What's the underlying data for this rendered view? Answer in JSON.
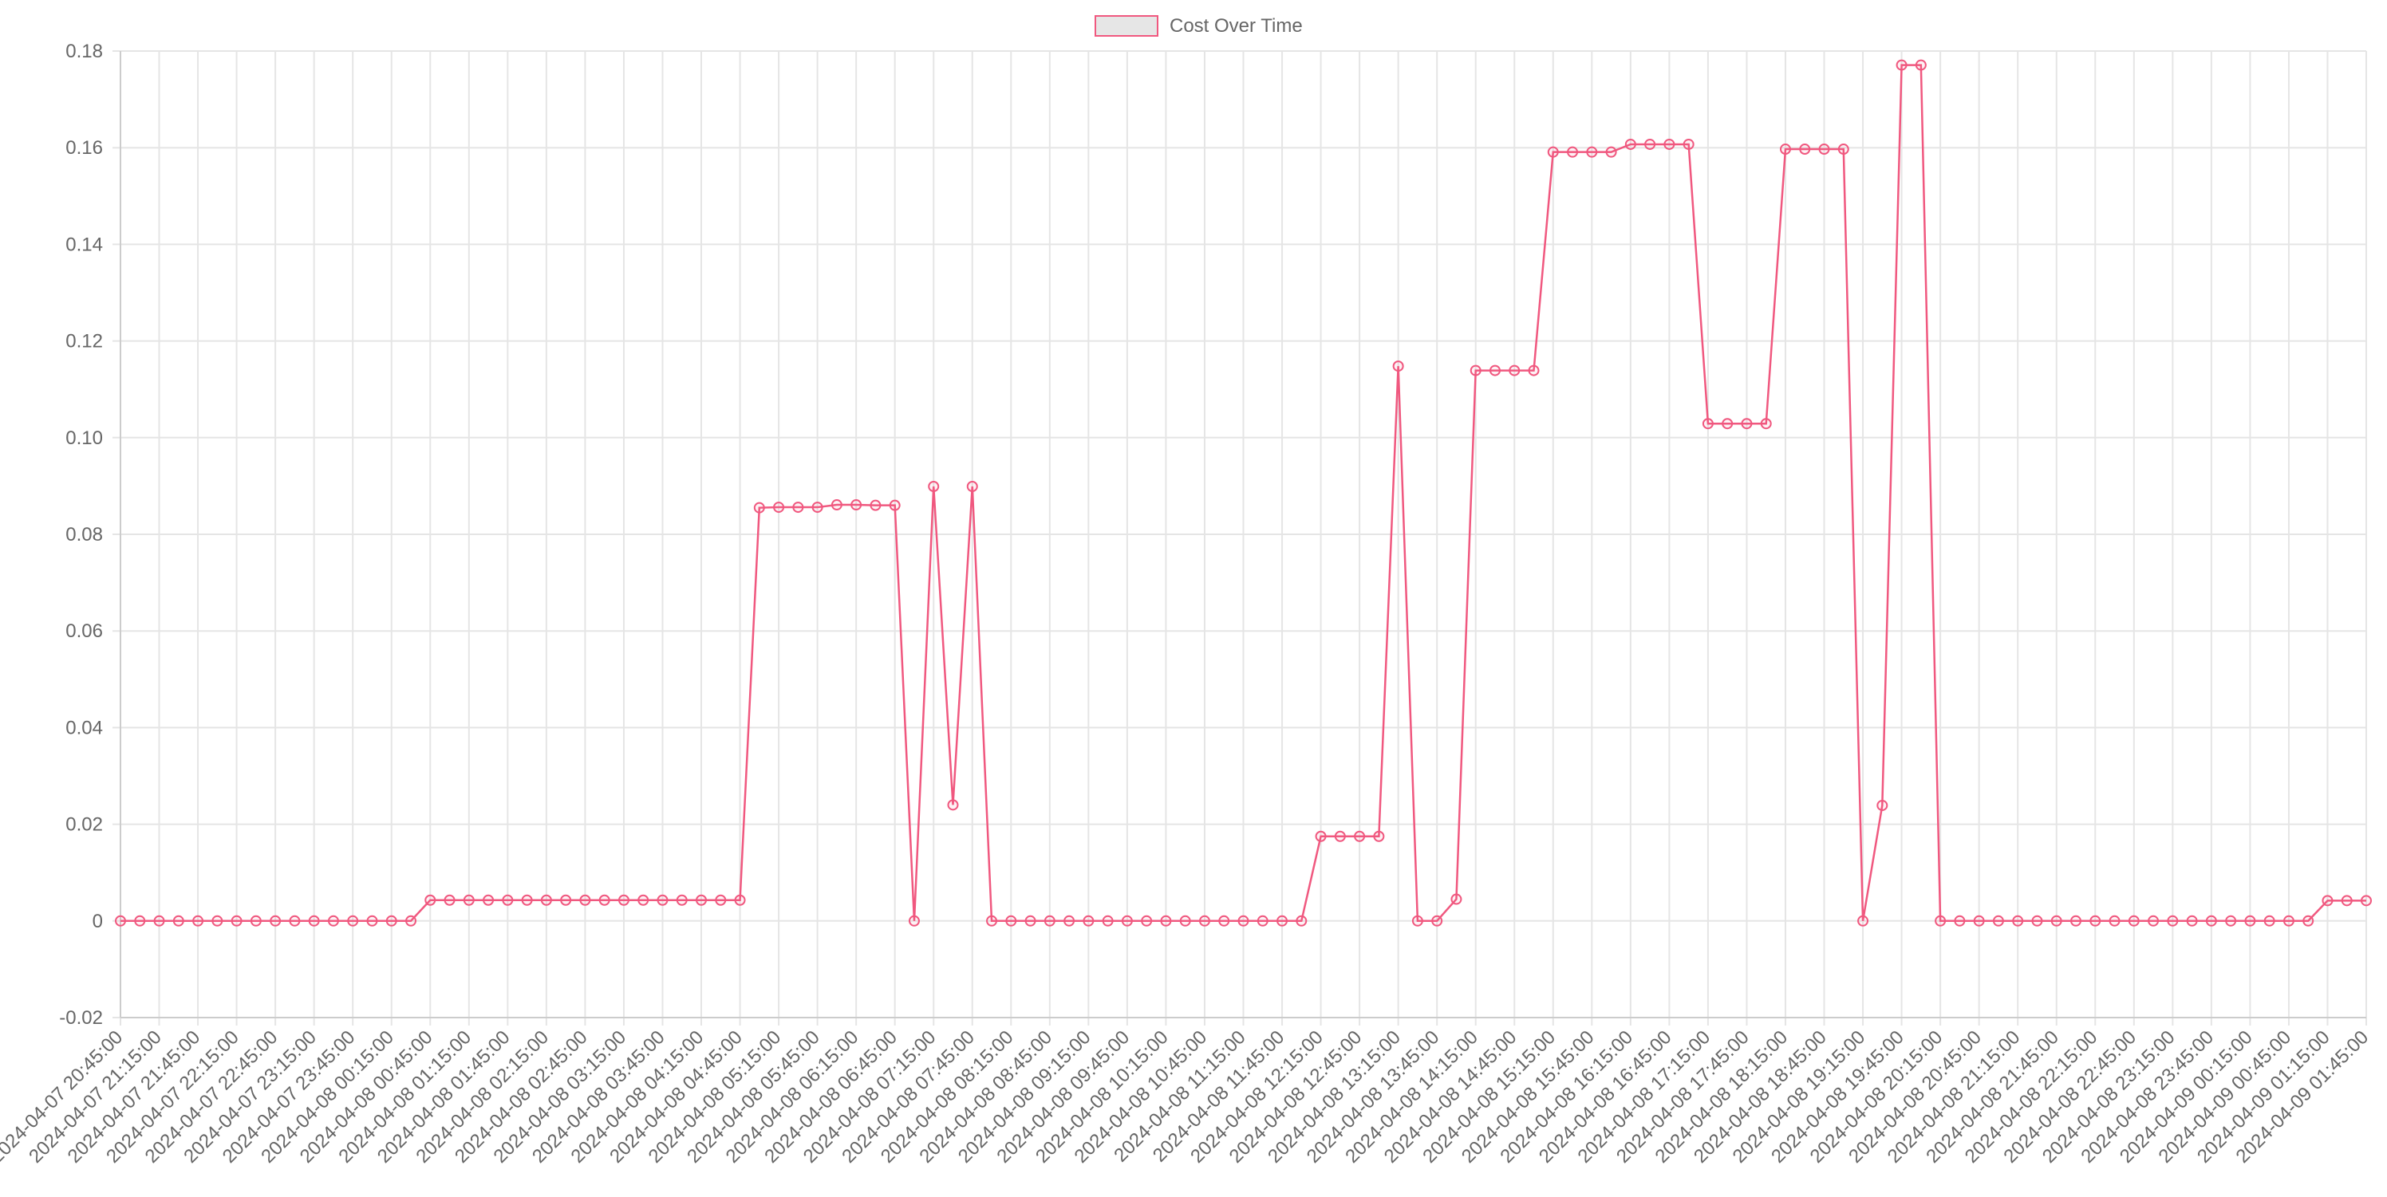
{
  "chart_data": {
    "type": "line",
    "title": "",
    "xlabel": "",
    "ylabel": "",
    "ylim": [
      -0.02,
      0.18
    ],
    "y_ticks": [
      "0.18",
      "0.16",
      "0.14",
      "0.12",
      "0.10",
      "0.08",
      "0.06",
      "0.04",
      "0.02",
      "0",
      "-0.02"
    ],
    "grid": true,
    "legend_position": "top-center",
    "x": [
      "2024-04-07 20:45:00",
      "2024-04-07 21:00:00",
      "2024-04-07 21:15:00",
      "2024-04-07 21:30:00",
      "2024-04-07 21:45:00",
      "2024-04-07 22:00:00",
      "2024-04-07 22:15:00",
      "2024-04-07 22:30:00",
      "2024-04-07 22:45:00",
      "2024-04-07 23:00:00",
      "2024-04-07 23:15:00",
      "2024-04-07 23:30:00",
      "2024-04-07 23:45:00",
      "2024-04-08 00:00:00",
      "2024-04-08 00:15:00",
      "2024-04-08 00:30:00",
      "2024-04-08 00:45:00",
      "2024-04-08 01:00:00",
      "2024-04-08 01:15:00",
      "2024-04-08 01:30:00",
      "2024-04-08 01:45:00",
      "2024-04-08 02:00:00",
      "2024-04-08 02:15:00",
      "2024-04-08 02:30:00",
      "2024-04-08 02:45:00",
      "2024-04-08 03:00:00",
      "2024-04-08 03:15:00",
      "2024-04-08 03:30:00",
      "2024-04-08 03:45:00",
      "2024-04-08 04:00:00",
      "2024-04-08 04:15:00",
      "2024-04-08 04:30:00",
      "2024-04-08 04:45:00",
      "2024-04-08 05:00:00",
      "2024-04-08 05:15:00",
      "2024-04-08 05:30:00",
      "2024-04-08 05:45:00",
      "2024-04-08 06:00:00",
      "2024-04-08 06:15:00",
      "2024-04-08 06:30:00",
      "2024-04-08 06:45:00",
      "2024-04-08 07:00:00",
      "2024-04-08 07:15:00",
      "2024-04-08 07:30:00",
      "2024-04-08 07:45:00",
      "2024-04-08 08:00:00",
      "2024-04-08 08:15:00",
      "2024-04-08 08:30:00",
      "2024-04-08 08:45:00",
      "2024-04-08 09:00:00",
      "2024-04-08 09:15:00",
      "2024-04-08 09:30:00",
      "2024-04-08 09:45:00",
      "2024-04-08 10:00:00",
      "2024-04-08 10:15:00",
      "2024-04-08 10:30:00",
      "2024-04-08 10:45:00",
      "2024-04-08 11:00:00",
      "2024-04-08 11:15:00",
      "2024-04-08 11:30:00",
      "2024-04-08 11:45:00",
      "2024-04-08 12:00:00",
      "2024-04-08 12:15:00",
      "2024-04-08 12:30:00",
      "2024-04-08 12:45:00",
      "2024-04-08 13:00:00",
      "2024-04-08 13:15:00",
      "2024-04-08 13:30:00",
      "2024-04-08 13:45:00",
      "2024-04-08 14:00:00",
      "2024-04-08 14:15:00",
      "2024-04-08 14:30:00",
      "2024-04-08 14:45:00",
      "2024-04-08 15:00:00",
      "2024-04-08 15:15:00",
      "2024-04-08 15:30:00",
      "2024-04-08 15:45:00",
      "2024-04-08 16:00:00",
      "2024-04-08 16:15:00",
      "2024-04-08 16:30:00",
      "2024-04-08 16:45:00",
      "2024-04-08 17:00:00",
      "2024-04-08 17:15:00",
      "2024-04-08 17:30:00",
      "2024-04-08 17:45:00",
      "2024-04-08 18:00:00",
      "2024-04-08 18:15:00",
      "2024-04-08 18:30:00",
      "2024-04-08 18:45:00",
      "2024-04-08 19:00:00",
      "2024-04-08 19:15:00",
      "2024-04-08 19:30:00",
      "2024-04-08 19:45:00",
      "2024-04-08 20:00:00",
      "2024-04-08 20:15:00",
      "2024-04-08 20:30:00",
      "2024-04-08 20:45:00",
      "2024-04-08 21:00:00",
      "2024-04-08 21:15:00",
      "2024-04-08 21:30:00",
      "2024-04-08 21:45:00",
      "2024-04-08 22:00:00",
      "2024-04-08 22:15:00",
      "2024-04-08 22:30:00",
      "2024-04-08 22:45:00",
      "2024-04-08 23:00:00",
      "2024-04-08 23:15:00",
      "2024-04-08 23:30:00",
      "2024-04-08 23:45:00",
      "2024-04-09 00:00:00",
      "2024-04-09 00:15:00",
      "2024-04-09 00:30:00",
      "2024-04-09 00:45:00",
      "2024-04-09 01:00:00",
      "2024-04-09 01:15:00",
      "2024-04-09 01:30:00",
      "2024-04-09 01:45:00"
    ],
    "x_tick_labels": [
      "2024-04-07 20:45:00",
      "2024-04-07 21:15:00",
      "2024-04-07 21:45:00",
      "2024-04-07 22:15:00",
      "2024-04-07 22:45:00",
      "2024-04-07 23:15:00",
      "2024-04-07 23:45:00",
      "2024-04-08 00:15:00",
      "2024-04-08 00:45:00",
      "2024-04-08 01:15:00",
      "2024-04-08 01:45:00",
      "2024-04-08 02:15:00",
      "2024-04-08 02:45:00",
      "2024-04-08 03:15:00",
      "2024-04-08 03:45:00",
      "2024-04-08 04:15:00",
      "2024-04-08 04:45:00",
      "2024-04-08 05:15:00",
      "2024-04-08 05:45:00",
      "2024-04-08 06:15:00",
      "2024-04-08 06:45:00",
      "2024-04-08 07:15:00",
      "2024-04-08 07:45:00",
      "2024-04-08 08:15:00",
      "2024-04-08 08:45:00",
      "2024-04-08 09:15:00",
      "2024-04-08 09:45:00",
      "2024-04-08 10:15:00",
      "2024-04-08 10:45:00",
      "2024-04-08 11:15:00",
      "2024-04-08 11:45:00",
      "2024-04-08 12:15:00",
      "2024-04-08 12:45:00",
      "2024-04-08 13:15:00",
      "2024-04-08 13:45:00",
      "2024-04-08 14:15:00",
      "2024-04-08 14:45:00",
      "2024-04-08 15:15:00",
      "2024-04-08 15:45:00",
      "2024-04-08 16:15:00",
      "2024-04-08 16:45:00",
      "2024-04-08 17:15:00",
      "2024-04-08 17:45:00",
      "2024-04-08 18:15:00",
      "2024-04-08 18:45:00",
      "2024-04-08 19:15:00",
      "2024-04-08 19:45:00",
      "2024-04-08 20:15:00",
      "2024-04-08 20:45:00",
      "2024-04-08 21:15:00",
      "2024-04-08 21:45:00",
      "2024-04-08 22:15:00",
      "2024-04-08 22:45:00",
      "2024-04-08 23:15:00",
      "2024-04-08 23:45:00",
      "2024-04-09 00:15:00",
      "2024-04-09 00:45:00",
      "2024-04-09 01:15:00",
      "2024-04-09 01:45:00"
    ],
    "series": [
      {
        "name": "Cost Over Time",
        "color": "#f0587f",
        "legend_fill": "#e6e6e6",
        "values": [
          0,
          0,
          0,
          0,
          0,
          0,
          0,
          0,
          0,
          0,
          0,
          0,
          0,
          0,
          0,
          0,
          0.0043,
          0.0043,
          0.0043,
          0.0043,
          0.0043,
          0.0043,
          0.0043,
          0.0043,
          0.0043,
          0.0043,
          0.0043,
          0.0043,
          0.0043,
          0.0043,
          0.0043,
          0.0043,
          0.0043,
          0.0855,
          0.0856,
          0.0856,
          0.0856,
          0.0861,
          0.0861,
          0.086,
          0.086,
          0,
          0.0899,
          0.024,
          0.0899,
          0,
          0,
          0,
          0,
          0,
          0,
          0,
          0,
          0,
          0,
          0,
          0,
          0,
          0,
          0,
          0,
          0,
          0.0175,
          0.0175,
          0.0175,
          0.0175,
          0.1148,
          0,
          0,
          0.0045,
          0.1139,
          0.1139,
          0.1139,
          0.1139,
          0.1591,
          0.1591,
          0.1591,
          0.1591,
          0.1607,
          0.1607,
          0.1607,
          0.1607,
          0.1029,
          0.1029,
          0.1029,
          0.1029,
          0.1597,
          0.1597,
          0.1597,
          0.1597,
          0,
          0.0239,
          0.1771,
          0.1771,
          0,
          0,
          0,
          0,
          0,
          0,
          0,
          0,
          0,
          0,
          0,
          0,
          0,
          0,
          0,
          0,
          0,
          0,
          0,
          0,
          0.0042,
          0.0042,
          0.0042
        ]
      }
    ]
  }
}
